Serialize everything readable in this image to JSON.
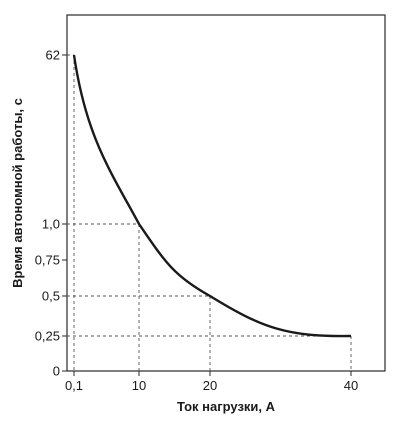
{
  "chart_data": {
    "type": "line",
    "xlabel": "Ток нагрузки, А",
    "ylabel": "Время автономной работы, с",
    "x_ticks": [
      {
        "value": 0.1,
        "label": "0,1"
      },
      {
        "value": 10,
        "label": "10"
      },
      {
        "value": 20,
        "label": "20"
      },
      {
        "value": 40,
        "label": "40"
      }
    ],
    "y_ticks": [
      {
        "value": 0,
        "label": "0"
      },
      {
        "value": 0.25,
        "label": "0,25"
      },
      {
        "value": 0.5,
        "label": "0,5"
      },
      {
        "value": 0.75,
        "label": "0,75"
      },
      {
        "value": 1.0,
        "label": "1,0"
      },
      {
        "value": 62,
        "label": "62"
      }
    ],
    "series": [
      {
        "points": [
          {
            "x": 0.1,
            "y": 62
          },
          {
            "x": 10,
            "y": 1.0
          },
          {
            "x": 20,
            "y": 0.5
          },
          {
            "x": 40,
            "y": 0.25
          }
        ]
      }
    ],
    "reference_lines": [
      {
        "x": 0.1,
        "y": 62
      },
      {
        "x": 10,
        "y": 1.0
      },
      {
        "x": 20,
        "y": 0.5
      },
      {
        "x": 40,
        "y": 0.25
      }
    ],
    "grid": false,
    "line_color": "#1a1a1a",
    "axis_color": "#2a2a2a",
    "guide_color": "#555555"
  }
}
